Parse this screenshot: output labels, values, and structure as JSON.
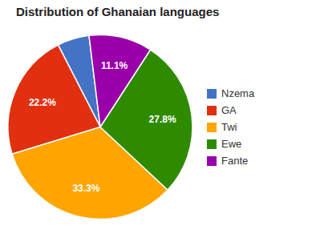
{
  "chart_data": {
    "type": "pie",
    "title": "Distribution of Ghanaian languages",
    "categories": [
      "Nzema",
      "GA",
      "Twi",
      "Ewe",
      "Fante"
    ],
    "values": [
      5.6,
      22.2,
      33.3,
      27.8,
      11.1
    ],
    "value_labels": [
      null,
      "22.2%",
      "33.3%",
      "27.8%",
      "11.1%"
    ],
    "colors": [
      "#4472C4",
      "#E03010",
      "#FFA500",
      "#2E8B00",
      "#9900AA"
    ],
    "data_labels": true,
    "legend": "right"
  }
}
